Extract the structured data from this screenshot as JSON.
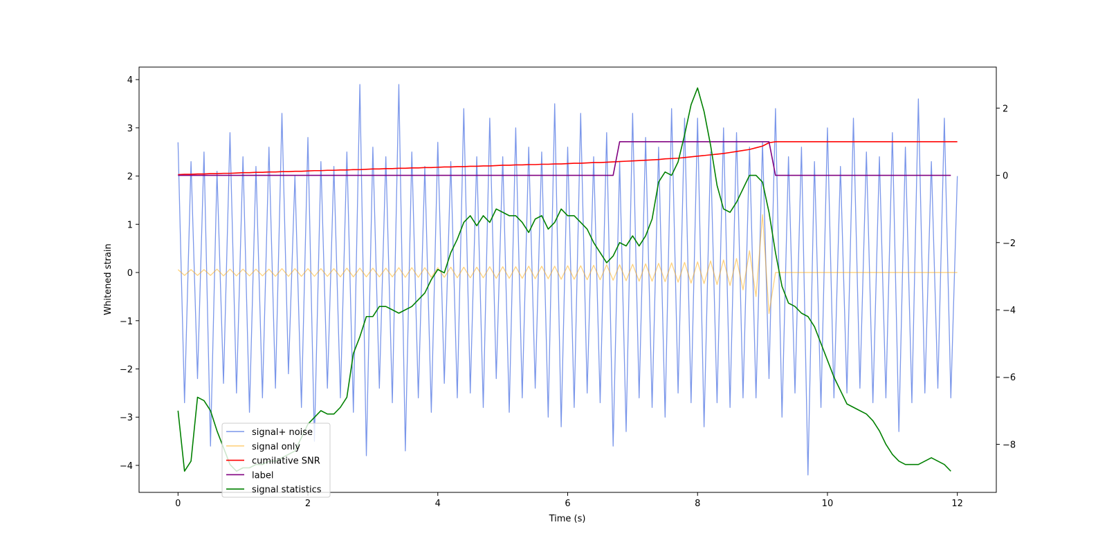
{
  "chart_data": {
    "type": "line",
    "xlabel": "Time (s)",
    "ylabel": "Whitened strain",
    "xlim": [
      -0.6,
      12.6
    ],
    "xticks": [
      0,
      2,
      4,
      6,
      8,
      10,
      12
    ],
    "ylim": [
      -4.56,
      4.26
    ],
    "yticks": [
      {
        "value": -4,
        "label": "−4"
      },
      {
        "value": -3,
        "label": "−3"
      },
      {
        "value": -2,
        "label": "−2"
      },
      {
        "value": -1,
        "label": "−1"
      },
      0,
      1,
      2,
      3,
      4
    ],
    "y2lim": [
      -9.43,
      3.22
    ],
    "y2ticks": [
      {
        "value": -8,
        "label": "−8"
      },
      {
        "value": -6,
        "label": "−6"
      },
      {
        "value": -4,
        "label": "−4"
      },
      {
        "value": -2,
        "label": "−2"
      },
      0,
      2
    ],
    "legend_loc": "lower left",
    "x": [
      0,
      0.1,
      0.2,
      0.3,
      0.4,
      0.5,
      0.6,
      0.7,
      0.8,
      0.9,
      1,
      1.1,
      1.2,
      1.3,
      1.4,
      1.5,
      1.6,
      1.7,
      1.8,
      1.9,
      2,
      2.1,
      2.2,
      2.3,
      2.4,
      2.5,
      2.6,
      2.7,
      2.8,
      2.9,
      3,
      3.1,
      3.2,
      3.3,
      3.4,
      3.5,
      3.6,
      3.7,
      3.8,
      3.9,
      4,
      4.1,
      4.2,
      4.3,
      4.4,
      4.5,
      4.6,
      4.7,
      4.8,
      4.9,
      5,
      5.1,
      5.2,
      5.3,
      5.4,
      5.5,
      5.6,
      5.7,
      5.8,
      5.9,
      6,
      6.1,
      6.2,
      6.3,
      6.4,
      6.5,
      6.6,
      6.7,
      6.8,
      6.9,
      7,
      7.1,
      7.2,
      7.3,
      7.4,
      7.5,
      7.6,
      7.7,
      7.8,
      7.9,
      8,
      8.1,
      8.2,
      8.3,
      8.4,
      8.5,
      8.6,
      8.7,
      8.8,
      8.9,
      9,
      9.1,
      9.2,
      9.3,
      9.4,
      9.5,
      9.6,
      9.7,
      9.8,
      9.9,
      10,
      10.1,
      10.2,
      10.3,
      10.4,
      10.5,
      10.6,
      10.7,
      10.8,
      10.9,
      11,
      11.1,
      11.2,
      11.3,
      11.4,
      11.5,
      11.6,
      11.7,
      11.8,
      11.9,
      12
    ],
    "series": [
      {
        "name": "signal+ noise",
        "color": "#4169e1",
        "alpha": 0.7,
        "width": 1.3,
        "values": [
          2.7,
          -2.7,
          2.3,
          -2.2,
          2.5,
          -3.6,
          2.1,
          -2.3,
          2.9,
          -2.5,
          2.4,
          -2.9,
          2.2,
          -2.6,
          2.6,
          -2.4,
          3.3,
          -2.1,
          2.0,
          -2.8,
          2.8,
          -3.5,
          2.3,
          -2.4,
          2.2,
          -2.6,
          2.5,
          -2.9,
          3.9,
          -3.8,
          2.6,
          -2.4,
          2.4,
          -2.7,
          3.9,
          -3.7,
          2.5,
          -2.6,
          2.2,
          -2.9,
          2.7,
          -2.3,
          2.3,
          -2.6,
          3.4,
          -2.5,
          2.4,
          -2.8,
          3.2,
          -2.2,
          2.4,
          -2.9,
          3.0,
          -2.6,
          2.6,
          -2.4,
          2.5,
          -3.0,
          3.5,
          -3.2,
          2.6,
          -2.8,
          3.3,
          -2.5,
          2.4,
          -2.7,
          2.9,
          -3.6,
          2.3,
          -3.3,
          3.3,
          -2.6,
          2.8,
          -2.8,
          2.6,
          -3.0,
          3.4,
          -2.5,
          3.2,
          -2.7,
          3.2,
          -3.2,
          2.5,
          -2.7,
          3.0,
          -2.8,
          2.9,
          -2.6,
          2.6,
          -2.6,
          2.7,
          -2.2,
          3.4,
          -3.0,
          2.4,
          -2.5,
          2.6,
          -4.2,
          2.3,
          -2.8,
          3.0,
          -2.6,
          2.2,
          -2.5,
          3.2,
          -2.4,
          2.5,
          -2.7,
          2.4,
          -2.6,
          2.9,
          -3.3,
          2.6,
          -2.7,
          3.6,
          -2.5,
          2.3,
          -2.4,
          3.2,
          -2.6,
          2.0
        ]
      },
      {
        "name": "signal only",
        "color": "#ffa500",
        "alpha": 0.5,
        "width": 1.3,
        "values": [
          0.06,
          -0.06,
          0.06,
          -0.06,
          0.06,
          -0.06,
          0.07,
          -0.07,
          0.07,
          -0.07,
          0.07,
          -0.07,
          0.07,
          -0.07,
          0.07,
          -0.08,
          0.08,
          -0.08,
          0.08,
          -0.08,
          0.08,
          -0.08,
          0.08,
          -0.08,
          0.08,
          -0.09,
          0.09,
          -0.09,
          0.09,
          -0.09,
          0.09,
          -0.09,
          0.09,
          -0.09,
          0.1,
          -0.1,
          0.1,
          -0.1,
          0.1,
          -0.1,
          0.1,
          -0.1,
          0.11,
          -0.11,
          0.11,
          -0.11,
          0.11,
          -0.11,
          0.12,
          -0.12,
          0.12,
          -0.12,
          0.12,
          -0.12,
          0.13,
          -0.13,
          0.13,
          -0.13,
          0.13,
          -0.14,
          0.14,
          -0.14,
          0.14,
          -0.15,
          0.15,
          -0.15,
          0.16,
          -0.16,
          0.16,
          -0.17,
          0.17,
          -0.18,
          0.18,
          -0.18,
          0.19,
          -0.19,
          0.2,
          -0.2,
          0.21,
          -0.22,
          0.22,
          -0.23,
          0.24,
          -0.25,
          0.26,
          -0.27,
          0.29,
          -0.36,
          0.45,
          -0.5,
          1.2,
          -0.85,
          0,
          0,
          0,
          0,
          0,
          0,
          0,
          0,
          0,
          0,
          0,
          0,
          0,
          0,
          0,
          0,
          0,
          0,
          0,
          0,
          0,
          0,
          0,
          0,
          0,
          0,
          0,
          0,
          0
        ]
      },
      {
        "name": "cumilative SNR",
        "color": "#ff0000",
        "alpha": 1,
        "width": 1.6,
        "axis": "y2",
        "values": [
          0.02,
          0.03,
          0.03,
          0.04,
          0.04,
          0.05,
          0.05,
          0.06,
          0.06,
          0.07,
          0.08,
          0.08,
          0.09,
          0.09,
          0.1,
          0.1,
          0.11,
          0.11,
          0.12,
          0.12,
          0.13,
          0.14,
          0.14,
          0.15,
          0.15,
          0.16,
          0.16,
          0.17,
          0.17,
          0.18,
          0.19,
          0.19,
          0.2,
          0.2,
          0.21,
          0.21,
          0.22,
          0.22,
          0.23,
          0.23,
          0.24,
          0.25,
          0.25,
          0.26,
          0.26,
          0.27,
          0.27,
          0.28,
          0.28,
          0.29,
          0.3,
          0.3,
          0.31,
          0.31,
          0.32,
          0.32,
          0.33,
          0.33,
          0.34,
          0.34,
          0.35,
          0.36,
          0.36,
          0.37,
          0.38,
          0.38,
          0.39,
          0.4,
          0.41,
          0.42,
          0.43,
          0.44,
          0.45,
          0.46,
          0.47,
          0.49,
          0.5,
          0.51,
          0.53,
          0.55,
          0.57,
          0.59,
          0.61,
          0.63,
          0.65,
          0.68,
          0.71,
          0.74,
          0.77,
          0.82,
          0.87,
          0.97,
          1,
          1,
          1,
          1,
          1,
          1,
          1,
          1,
          1,
          1,
          1,
          1,
          1,
          1,
          1,
          1,
          1,
          1,
          1,
          1,
          1,
          1,
          1,
          1,
          1,
          1,
          1,
          1,
          1
        ]
      },
      {
        "name": "label",
        "color": "#800080",
        "alpha": 1,
        "width": 1.6,
        "axis": "y2",
        "values": [
          0,
          0,
          0,
          0,
          0,
          0,
          0,
          0,
          0,
          0,
          0,
          0,
          0,
          0,
          0,
          0,
          0,
          0,
          0,
          0,
          0,
          0,
          0,
          0,
          0,
          0,
          0,
          0,
          0,
          0,
          0,
          0,
          0,
          0,
          0,
          0,
          0,
          0,
          0,
          0,
          0,
          0,
          0,
          0,
          0,
          0,
          0,
          0,
          0,
          0,
          0,
          0,
          0,
          0,
          0,
          0,
          0,
          0,
          0,
          0,
          0,
          0,
          0,
          0,
          0,
          0,
          0,
          0,
          1,
          1,
          1,
          1,
          1,
          1,
          1,
          1,
          1,
          1,
          1,
          1,
          1,
          1,
          1,
          1,
          1,
          1,
          1,
          1,
          1,
          1,
          1,
          1,
          0,
          0,
          0,
          0,
          0,
          0,
          0,
          0,
          0,
          0,
          0,
          0,
          0,
          0,
          0,
          0,
          0,
          0,
          0,
          0,
          0,
          0,
          0,
          0,
          0,
          0,
          0,
          0,
          null
        ]
      },
      {
        "name": "signal statistics",
        "color": "#008000",
        "alpha": 1,
        "width": 1.6,
        "axis": "y2",
        "values": [
          -7.0,
          -8.8,
          -8.5,
          -6.6,
          -6.7,
          -7.0,
          -7.6,
          -8.1,
          -8.6,
          -8.8,
          -8.7,
          -8.7,
          -8.6,
          -8.6,
          -8.5,
          -8.5,
          -8.4,
          -8.3,
          -8.2,
          -7.8,
          -7.4,
          -7.2,
          -7.0,
          -7.1,
          -7.1,
          -6.9,
          -6.6,
          -5.3,
          -4.8,
          -4.2,
          -4.2,
          -3.9,
          -3.9,
          -4.0,
          -4.1,
          -4.0,
          -3.9,
          -3.7,
          -3.5,
          -3.1,
          -2.8,
          -2.9,
          -2.3,
          -1.9,
          -1.4,
          -1.2,
          -1.5,
          -1.2,
          -1.4,
          -1.0,
          -1.1,
          -1.2,
          -1.2,
          -1.4,
          -1.7,
          -1.3,
          -1.2,
          -1.6,
          -1.4,
          -1.0,
          -1.2,
          -1.2,
          -1.4,
          -1.6,
          -2.0,
          -2.3,
          -2.6,
          -2.4,
          -2.0,
          -2.1,
          -1.8,
          -2.1,
          -1.8,
          -1.3,
          -0.2,
          0.1,
          0.0,
          0.4,
          1.2,
          2.1,
          2.6,
          1.9,
          0.9,
          -0.3,
          -1.0,
          -1.1,
          -0.8,
          -0.4,
          0.0,
          0.0,
          -0.2,
          -1.1,
          -2.3,
          -3.3,
          -3.8,
          -3.9,
          -4.1,
          -4.2,
          -4.5,
          -5.0,
          -5.5,
          -6.0,
          -6.4,
          -6.8,
          -6.9,
          -7.0,
          -7.1,
          -7.3,
          -7.6,
          -8.0,
          -8.3,
          -8.5,
          -8.6,
          -8.6,
          -8.6,
          -8.5,
          -8.4,
          -8.5,
          -8.6,
          -8.8,
          null
        ]
      }
    ]
  }
}
